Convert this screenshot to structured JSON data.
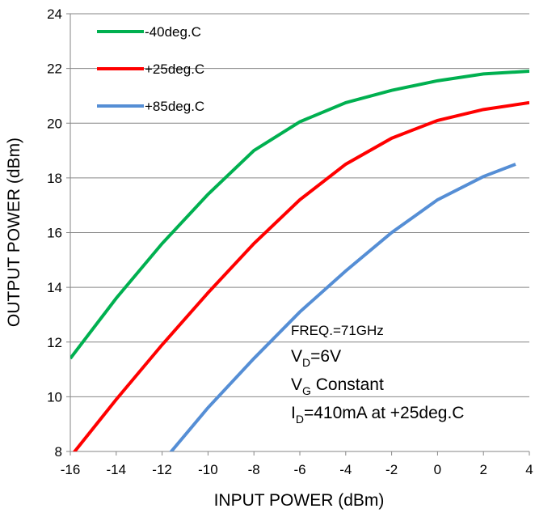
{
  "chart_data": {
    "type": "line",
    "x_label": "INPUT POWER (dBm)",
    "y_label": "OUTPUT POWER (dBm)",
    "xlim": [
      -16,
      4
    ],
    "ylim": [
      8,
      24
    ],
    "xticks": [
      -16,
      -14,
      -12,
      -10,
      -8,
      -6,
      -4,
      -2,
      0,
      2,
      4
    ],
    "yticks": [
      8,
      10,
      12,
      14,
      16,
      18,
      20,
      22,
      24
    ],
    "grid": true,
    "legend": "top-left",
    "series": [
      {
        "name": "-40deg.C",
        "color": "#00b050",
        "x": [
          -16,
          -14,
          -12,
          -10,
          -8,
          -6,
          -4,
          -2,
          0,
          2,
          4
        ],
        "values": [
          11.4,
          13.6,
          15.6,
          17.4,
          19.0,
          20.05,
          20.75,
          21.2,
          21.55,
          21.8,
          21.9
        ]
      },
      {
        "name": "+25deg.C",
        "color": "#ff0000",
        "x": [
          -16,
          -14,
          -12,
          -10,
          -8,
          -6,
          -4,
          -2,
          0,
          2,
          4
        ],
        "values": [
          7.8,
          9.9,
          11.9,
          13.8,
          15.6,
          17.2,
          18.5,
          19.45,
          20.1,
          20.5,
          20.75
        ]
      },
      {
        "name": "+85deg.C",
        "color": "#558ed5",
        "x": [
          -12,
          -10,
          -8,
          -6,
          -4,
          -2,
          0,
          2,
          3.4
        ],
        "values": [
          7.6,
          9.6,
          11.4,
          13.1,
          14.6,
          16.0,
          17.2,
          18.05,
          18.5
        ]
      }
    ],
    "annotations": [
      {
        "text": "FREQ.=71GHz"
      },
      {
        "text": "V",
        "sub": "D",
        "rest": "=6V"
      },
      {
        "text": "V",
        "sub": "G",
        "rest": " Constant"
      },
      {
        "text": "I",
        "sub": "D",
        "rest": "=410mA at +25deg.C"
      }
    ]
  }
}
